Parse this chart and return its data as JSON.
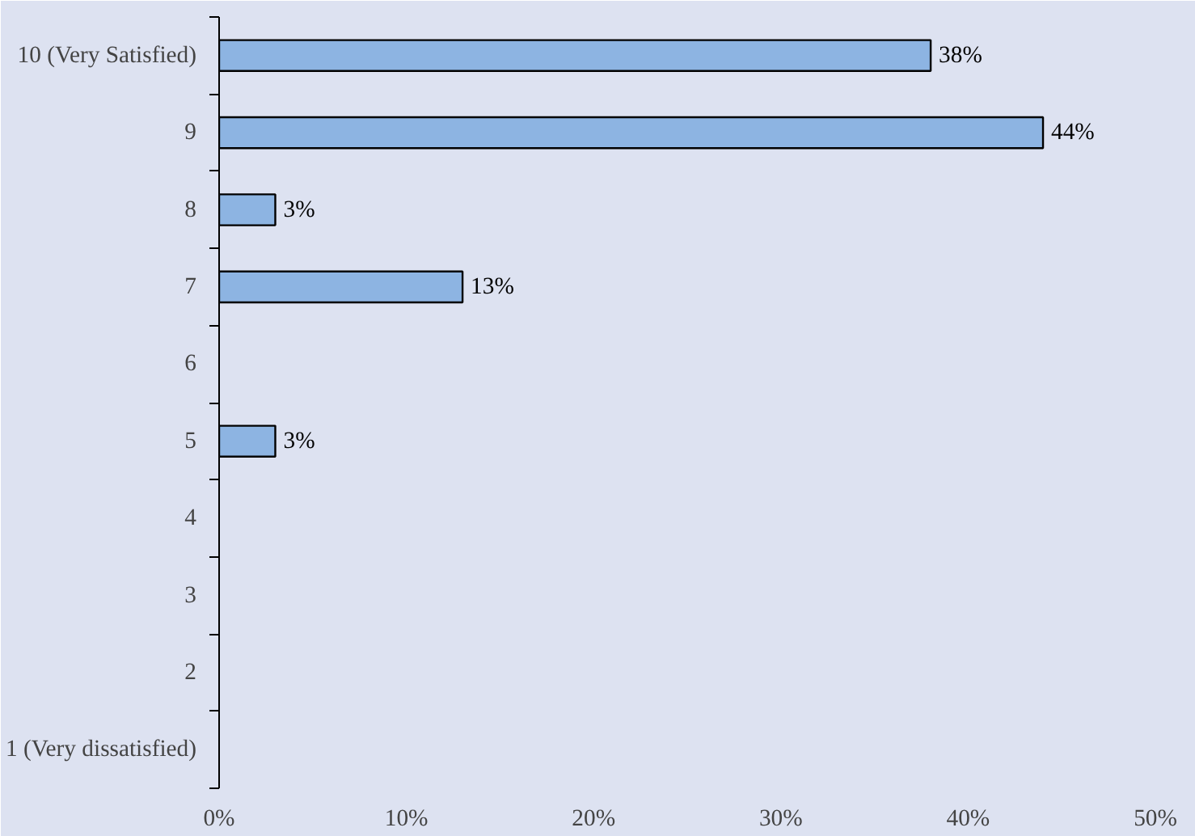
{
  "chart_data": {
    "type": "bar",
    "orientation": "horizontal",
    "categories": [
      "10 (Very Satisfied)",
      "9",
      "8",
      "7",
      "6",
      "5",
      "4",
      "3",
      "2",
      "1 (Very dissatisfied)"
    ],
    "values": [
      38,
      44,
      3,
      13,
      null,
      3,
      null,
      null,
      null,
      null
    ],
    "value_labels": [
      "38%",
      "44%",
      "3%",
      "13%",
      null,
      "3%",
      null,
      null,
      null,
      null
    ],
    "color": "#8db4e2",
    "xlim": [
      0,
      50
    ],
    "xticks": [
      {
        "value": 0,
        "label": "0%"
      },
      {
        "value": 10,
        "label": "10%"
      },
      {
        "value": 20,
        "label": "20%"
      },
      {
        "value": 30,
        "label": "30%"
      },
      {
        "value": 40,
        "label": "40%"
      },
      {
        "value": 50,
        "label": "50%"
      }
    ],
    "grid": false
  }
}
